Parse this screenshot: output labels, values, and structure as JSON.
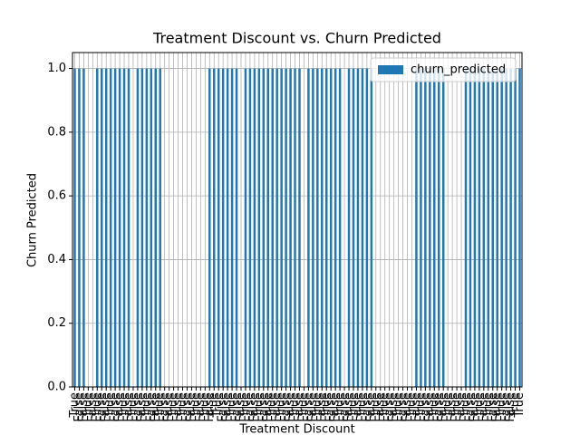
{
  "chart_data": {
    "type": "bar",
    "title": "Treatment Discount vs. Churn Predicted",
    "x_label": "Treatment Discount",
    "y_label": "Churn Predicted",
    "categories": [
      "True",
      "False",
      "False",
      "True",
      "False",
      "True",
      "False",
      "False",
      "True",
      "False",
      "False",
      "True",
      "False",
      "True",
      "False",
      "False",
      "True",
      "False",
      "False",
      "True",
      "False",
      "False",
      "True",
      "False",
      "True",
      "False",
      "False",
      "True",
      "False",
      "True",
      "False",
      "True",
      "True",
      "False",
      "False",
      "True",
      "False",
      "False",
      "True",
      "False",
      "False",
      "True",
      "False",
      "False",
      "True",
      "False",
      "True",
      "False",
      "False",
      "True",
      "False",
      "True",
      "False",
      "False",
      "True",
      "False",
      "True",
      "False",
      "False",
      "True",
      "False",
      "False",
      "True",
      "False",
      "True",
      "False",
      "False",
      "True",
      "False",
      "True",
      "False",
      "False",
      "True",
      "False",
      "False",
      "True",
      "False",
      "True",
      "False",
      "False",
      "True",
      "False",
      "False",
      "True",
      "False",
      "True",
      "False",
      "True",
      "False",
      "False",
      "True",
      "False",
      "True",
      "False",
      "False",
      "True",
      "False",
      "False",
      "True",
      "True"
    ],
    "series": [
      {
        "name": "churn_predicted",
        "color": "#1f77b4",
        "values": [
          1,
          1,
          1,
          0,
          0,
          1,
          1,
          1,
          1,
          1,
          1,
          1,
          1,
          0,
          1,
          1,
          1,
          1,
          1,
          1,
          0,
          0,
          0,
          0,
          0,
          0,
          0,
          0,
          0,
          0,
          1,
          1,
          1,
          1,
          1,
          1,
          1,
          0,
          1,
          1,
          1,
          1,
          1,
          1,
          1,
          1,
          1,
          1,
          1,
          1,
          1,
          0,
          1,
          1,
          1,
          1,
          1,
          1,
          1,
          1,
          0,
          1,
          1,
          1,
          1,
          1,
          1,
          0,
          0,
          0,
          0,
          0,
          0,
          0,
          0,
          0,
          1,
          1,
          1,
          1,
          1,
          1,
          1,
          0,
          0,
          0,
          0,
          1,
          1,
          1,
          1,
          1,
          1,
          1,
          1,
          1,
          1,
          1,
          1,
          1
        ]
      }
    ],
    "ylim": [
      0,
      1.05
    ],
    "yticks": [
      {
        "value": 0,
        "label": "0.0"
      },
      0.2,
      0.4,
      0.6,
      0.8,
      {
        "value": 1,
        "label": "1.0"
      }
    ],
    "grid": true,
    "legend": "upper right"
  }
}
